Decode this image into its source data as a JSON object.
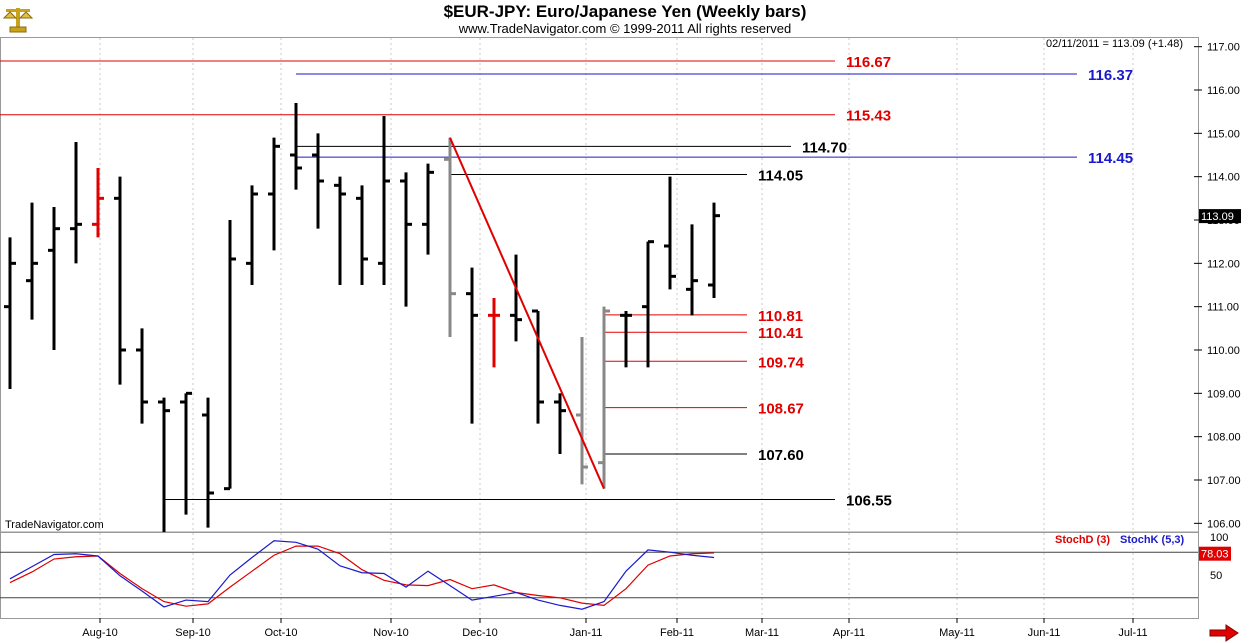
{
  "header": {
    "title": "$EUR-JPY:  Euro/Japanese Yen  (Weekly bars)",
    "subtitle": "www.TradeNavigator.com © 1999-2011 All rights reserved"
  },
  "logo_icon": "brass-scales-icon",
  "scroll_arrow_icon": "red-right-arrow-icon",
  "chart_data": [
    {
      "type": "ohlc",
      "series_name": "$EUR-JPY",
      "readout": "02/11/2011 = 113.09 (+1.48)",
      "last_price_label": "113.09",
      "watermark": "TradeNavigator.com",
      "ylim": [
        105.8,
        117.2
      ],
      "y_ticks": [
        "106.00",
        "107.00",
        "108.00",
        "109.00",
        "110.00",
        "111.00",
        "112.00",
        "113.00",
        "114.00",
        "115.00",
        "116.00",
        "117.00"
      ],
      "x_ticks": [
        "Aug-10",
        "Sep-10",
        "Oct-10",
        "Nov-10",
        "Dec-10",
        "Jan-11",
        "Feb-11",
        "Mar-11",
        "Apr-11",
        "May-11",
        "Jun-11",
        "Jul-11"
      ],
      "colors": {
        "bar": "#000000",
        "down_bar": "#e00000",
        "gray_bar": "#888888",
        "red_level": "#e00000",
        "blue_level": "#1a1acc",
        "black_level": "#000000",
        "trendline": "#e00000"
      },
      "bars": [
        {
          "o": 111.0,
          "h": 112.6,
          "l": 109.1,
          "c": 112.0,
          "color": "black"
        },
        {
          "o": 111.6,
          "h": 113.4,
          "l": 110.7,
          "c": 112.0,
          "color": "black"
        },
        {
          "o": 112.3,
          "h": 113.3,
          "l": 110.0,
          "c": 112.8,
          "color": "black"
        },
        {
          "o": 112.8,
          "h": 114.8,
          "l": 112.0,
          "c": 112.9,
          "color": "black"
        },
        {
          "o": 112.9,
          "h": 114.2,
          "l": 112.6,
          "c": 113.5,
          "color": "red"
        },
        {
          "o": 113.5,
          "h": 114.0,
          "l": 109.2,
          "c": 110.0,
          "color": "black"
        },
        {
          "o": 110.0,
          "h": 110.5,
          "l": 108.3,
          "c": 108.8,
          "color": "black"
        },
        {
          "o": 108.8,
          "h": 108.9,
          "l": 105.8,
          "c": 108.6,
          "color": "black"
        },
        {
          "o": 108.8,
          "h": 109.0,
          "l": 106.2,
          "c": 109.0,
          "color": "black"
        },
        {
          "o": 108.5,
          "h": 108.9,
          "l": 105.9,
          "c": 106.7,
          "color": "black"
        },
        {
          "o": 106.8,
          "h": 113.0,
          "l": 106.8,
          "c": 112.1,
          "color": "black"
        },
        {
          "o": 112.0,
          "h": 113.8,
          "l": 111.5,
          "c": 113.6,
          "color": "black"
        },
        {
          "o": 113.6,
          "h": 114.9,
          "l": 112.3,
          "c": 114.7,
          "color": "black"
        },
        {
          "o": 114.5,
          "h": 115.7,
          "l": 113.7,
          "c": 114.2,
          "color": "black"
        },
        {
          "o": 114.5,
          "h": 115.0,
          "l": 112.8,
          "c": 113.9,
          "color": "black"
        },
        {
          "o": 113.8,
          "h": 114.0,
          "l": 111.5,
          "c": 113.6,
          "color": "black"
        },
        {
          "o": 113.5,
          "h": 113.8,
          "l": 111.5,
          "c": 112.1,
          "color": "black"
        },
        {
          "o": 112.0,
          "h": 115.4,
          "l": 111.5,
          "c": 113.9,
          "color": "black"
        },
        {
          "o": 113.9,
          "h": 114.1,
          "l": 111.0,
          "c": 112.9,
          "color": "black"
        },
        {
          "o": 112.9,
          "h": 114.3,
          "l": 112.2,
          "c": 114.1,
          "color": "black"
        },
        {
          "o": 114.4,
          "h": 114.9,
          "l": 110.3,
          "c": 111.3,
          "color": "gray"
        },
        {
          "o": 111.3,
          "h": 111.9,
          "l": 108.3,
          "c": 110.8,
          "color": "black"
        },
        {
          "o": 110.8,
          "h": 111.2,
          "l": 109.6,
          "c": 110.8,
          "color": "red"
        },
        {
          "o": 110.8,
          "h": 112.2,
          "l": 110.2,
          "c": 110.7,
          "color": "black"
        },
        {
          "o": 110.9,
          "h": 110.9,
          "l": 108.3,
          "c": 108.8,
          "color": "black"
        },
        {
          "o": 108.8,
          "h": 109.0,
          "l": 107.6,
          "c": 108.6,
          "color": "black"
        },
        {
          "o": 108.5,
          "h": 110.3,
          "l": 106.9,
          "c": 107.3,
          "color": "gray"
        },
        {
          "o": 107.4,
          "h": 111.0,
          "l": 106.8,
          "c": 110.9,
          "color": "gray"
        },
        {
          "o": 110.8,
          "h": 110.9,
          "l": 109.6,
          "c": 110.8,
          "color": "black"
        },
        {
          "o": 111.0,
          "h": 112.5,
          "l": 109.6,
          "c": 112.5,
          "color": "black"
        },
        {
          "o": 112.4,
          "h": 114.0,
          "l": 111.4,
          "c": 111.7,
          "color": "black"
        },
        {
          "o": 111.4,
          "h": 112.9,
          "l": 110.8,
          "c": 111.6,
          "color": "black"
        },
        {
          "o": 111.5,
          "h": 113.4,
          "l": 111.2,
          "c": 113.1,
          "color": "black"
        }
      ],
      "levels": [
        {
          "value": 116.67,
          "label": "116.67",
          "color": "red",
          "start_bar": -5,
          "end_bar": 37.5
        },
        {
          "value": 116.37,
          "label": "116.37",
          "color": "blue",
          "start_bar": 13,
          "end_bar": 48.5
        },
        {
          "value": 115.43,
          "label": "115.43",
          "color": "red",
          "start_bar": -5,
          "end_bar": 37.5
        },
        {
          "value": 114.7,
          "label": "114.70",
          "color": "black",
          "start_bar": 13,
          "end_bar": 35.5
        },
        {
          "value": 114.45,
          "label": "114.45",
          "color": "blue",
          "start_bar": 13,
          "end_bar": 48.5
        },
        {
          "value": 114.05,
          "label": "114.05",
          "color": "black",
          "start_bar": 20,
          "end_bar": 33.5
        },
        {
          "value": 110.81,
          "label": "110.81",
          "color": "red",
          "start_bar": 27,
          "end_bar": 33.5
        },
        {
          "value": 110.41,
          "label": "110.41",
          "color": "red",
          "start_bar": 27,
          "end_bar": 33.5
        },
        {
          "value": 109.74,
          "label": "109.74",
          "color": "red",
          "start_bar": 27,
          "end_bar": 33.5
        },
        {
          "value": 108.67,
          "label": "108.67",
          "color": "red",
          "start_bar": 27,
          "end_bar": 33.5
        },
        {
          "value": 107.6,
          "label": "107.60",
          "color": "black",
          "start_bar": 27,
          "end_bar": 33.5
        },
        {
          "value": 106.55,
          "label": "106.55",
          "color": "black",
          "start_bar": 7,
          "end_bar": 37.5
        }
      ],
      "trendline": {
        "from_bar": 20,
        "from_value": 114.9,
        "to_bar": 27,
        "to_value": 106.8
      }
    },
    {
      "type": "line",
      "ylim": [
        0,
        100
      ],
      "y_ticks": [
        "50",
        "100"
      ],
      "reference_levels": [
        80,
        20
      ],
      "last_value_label": "78.03",
      "series": [
        {
          "name": "StochD (3)",
          "color": "#e00000",
          "values": [
            40,
            54,
            71,
            74,
            75,
            52,
            32,
            15,
            9,
            12,
            34,
            55,
            76,
            88,
            88,
            78,
            57,
            43,
            37,
            36,
            44,
            32,
            37,
            27,
            23,
            20,
            13,
            10,
            32,
            63,
            75,
            78,
            79
          ]
        },
        {
          "name": "StochK (5,3)",
          "color": "#1a1acc",
          "values": [
            45,
            61,
            77,
            78,
            75,
            49,
            29,
            8,
            17,
            15,
            50,
            73,
            95,
            93,
            84,
            62,
            53,
            52,
            34,
            55,
            36,
            17,
            22,
            27,
            17,
            10,
            5,
            15,
            55,
            83,
            80,
            76,
            73
          ]
        }
      ]
    }
  ]
}
